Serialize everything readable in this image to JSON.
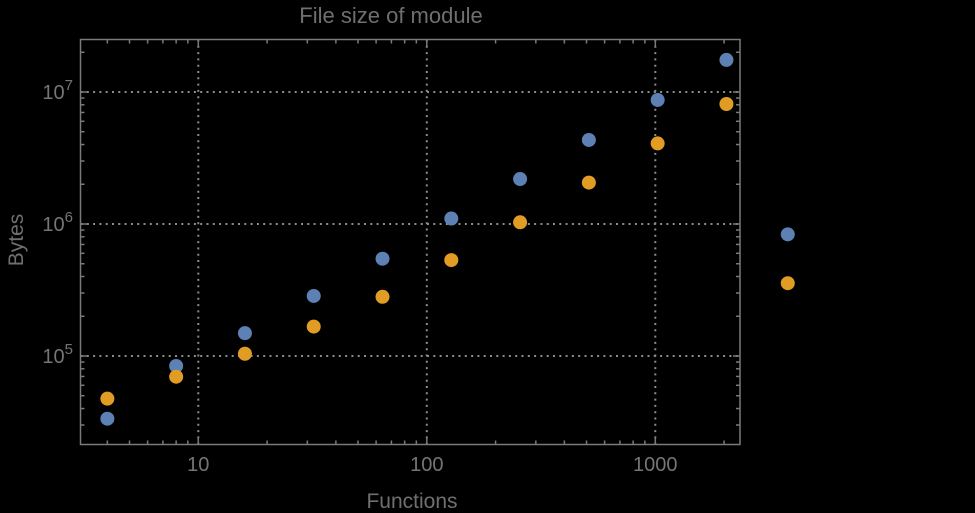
{
  "title": "File size of module",
  "colors": {
    "background": "#000000",
    "frame": "#7a7a7a",
    "gridlines": "#8c8c8c",
    "text": "#6f6f6f",
    "tick_text": "#757575",
    "series1_blue": "#5E81B5",
    "series2_orange": "#E19C24"
  },
  "chart_data": {
    "type": "scatter",
    "title": "File size of module",
    "xlabel": "Functions",
    "ylabel": "Bytes",
    "xscale": "log",
    "yscale": "log",
    "xlim": [
      3.05,
      2347
    ],
    "ylim": [
      21400,
      25000000
    ],
    "grid": "dotted gray lines at decades only",
    "legend": "none",
    "marker": "filled circle",
    "x": [
      4,
      8,
      16,
      32,
      64,
      128,
      256,
      512,
      1024,
      2048,
      3800
    ],
    "series": [
      {
        "name": "series-1-blue",
        "color": "#5E81B5",
        "values": [
          33500,
          84000,
          149000,
          285000,
          546000,
          1100000,
          2190000,
          4330000,
          8700000,
          17500000,
          835000
        ]
      },
      {
        "name": "series-2-orange",
        "color": "#E19C24",
        "values": [
          47500,
          69700,
          104000,
          167000,
          281000,
          533000,
          1030000,
          2060000,
          4080000,
          8110000,
          356000
        ]
      }
    ],
    "x_ticks": [
      {
        "value": 10,
        "label": "10"
      },
      {
        "value": 100,
        "label": "100"
      },
      {
        "value": 1000,
        "label": "1000"
      }
    ],
    "y_ticks": [
      {
        "value": 100000,
        "mantissa": "10",
        "exponent": "5"
      },
      {
        "value": 1000000,
        "mantissa": "10",
        "exponent": "6"
      },
      {
        "value": 10000000,
        "mantissa": "10",
        "exponent": "7"
      }
    ],
    "note": "last pair of points (x~3800) drawn outside right edge of plot frame"
  }
}
